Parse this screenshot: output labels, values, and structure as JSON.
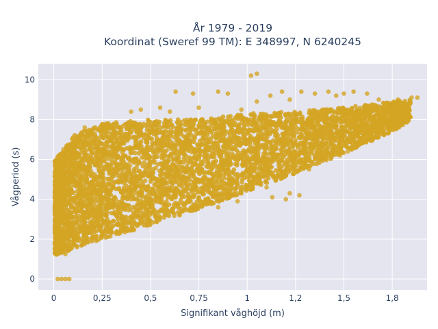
{
  "chart_data": {
    "type": "scatter",
    "title_lines": [
      "År 1979 - 2019",
      "Koordinat (Sweref 99 TM): E 348997, N 6240245"
    ],
    "xlabel": "Signifikant våghöjd (m)",
    "ylabel": "Vågperiod (s)",
    "xlim": [
      -0.08,
      1.93
    ],
    "ylim": [
      -0.55,
      10.8
    ],
    "xticks": [
      0,
      0.25,
      0.5,
      0.75,
      1,
      1.25,
      1.5,
      1.75
    ],
    "xtick_labels": [
      "0",
      "0,25",
      "0,5",
      "0,75",
      "1",
      "1,2",
      "1,5",
      "1,8"
    ],
    "yticks": [
      0,
      2,
      4,
      6,
      8,
      10
    ],
    "ytick_labels": [
      "0",
      "2",
      "4",
      "6",
      "8",
      "10"
    ],
    "grid": true,
    "legend": "none",
    "marker_color": "#D4A523",
    "background_color": "#E5E5F0",
    "density_envelope": {
      "h": [
        0.01,
        0.1,
        0.25,
        0.5,
        0.75,
        1.0,
        1.25,
        1.5,
        1.75,
        1.85
      ],
      "t_lower": [
        1.2,
        1.5,
        2.0,
        2.7,
        3.5,
        4.4,
        5.3,
        6.3,
        7.4,
        8.0
      ],
      "t_upper": [
        6.0,
        7.2,
        7.8,
        8.0,
        8.0,
        8.3,
        8.4,
        8.6,
        8.9,
        9.0
      ]
    },
    "points": [
      {
        "x": 0.02,
        "y": 0.0
      },
      {
        "x": 0.04,
        "y": 0.0
      },
      {
        "x": 0.06,
        "y": 0.0
      },
      {
        "x": 0.08,
        "y": 0.0
      },
      {
        "x": 0.01,
        "y": 4.2
      },
      {
        "x": 0.03,
        "y": 6.1
      },
      {
        "x": 0.05,
        "y": 6.5
      },
      {
        "x": 0.12,
        "y": 7.0
      },
      {
        "x": 0.16,
        "y": 7.6
      },
      {
        "x": 0.19,
        "y": 6.8
      },
      {
        "x": 0.06,
        "y": 1.25
      },
      {
        "x": 0.12,
        "y": 1.6
      },
      {
        "x": 0.4,
        "y": 8.4
      },
      {
        "x": 0.45,
        "y": 8.5
      },
      {
        "x": 0.55,
        "y": 8.6
      },
      {
        "x": 0.6,
        "y": 8.4
      },
      {
        "x": 0.63,
        "y": 9.4
      },
      {
        "x": 0.72,
        "y": 9.3
      },
      {
        "x": 0.75,
        "y": 8.6
      },
      {
        "x": 0.85,
        "y": 9.4
      },
      {
        "x": 0.9,
        "y": 9.3
      },
      {
        "x": 0.97,
        "y": 8.5
      },
      {
        "x": 1.02,
        "y": 10.2
      },
      {
        "x": 1.05,
        "y": 10.3
      },
      {
        "x": 1.05,
        "y": 8.9
      },
      {
        "x": 1.12,
        "y": 9.2
      },
      {
        "x": 1.18,
        "y": 9.4
      },
      {
        "x": 1.22,
        "y": 9.0
      },
      {
        "x": 1.28,
        "y": 9.4
      },
      {
        "x": 1.35,
        "y": 9.3
      },
      {
        "x": 1.42,
        "y": 9.4
      },
      {
        "x": 1.46,
        "y": 9.2
      },
      {
        "x": 1.5,
        "y": 9.3
      },
      {
        "x": 1.55,
        "y": 9.4
      },
      {
        "x": 1.62,
        "y": 9.3
      },
      {
        "x": 1.68,
        "y": 9.0
      },
      {
        "x": 1.72,
        "y": 8.8
      },
      {
        "x": 1.78,
        "y": 9.0
      },
      {
        "x": 1.85,
        "y": 9.1
      },
      {
        "x": 1.88,
        "y": 9.1
      },
      {
        "x": 0.85,
        "y": 3.6
      },
      {
        "x": 0.92,
        "y": 4.5
      },
      {
        "x": 0.95,
        "y": 3.9
      },
      {
        "x": 1.05,
        "y": 5.0
      },
      {
        "x": 1.1,
        "y": 4.6
      },
      {
        "x": 1.13,
        "y": 4.1
      },
      {
        "x": 1.2,
        "y": 4.0
      },
      {
        "x": 1.22,
        "y": 4.3
      },
      {
        "x": 1.27,
        "y": 4.2
      },
      {
        "x": 1.32,
        "y": 5.5
      },
      {
        "x": 1.48,
        "y": 6.2
      },
      {
        "x": 1.52,
        "y": 6.4
      }
    ]
  }
}
